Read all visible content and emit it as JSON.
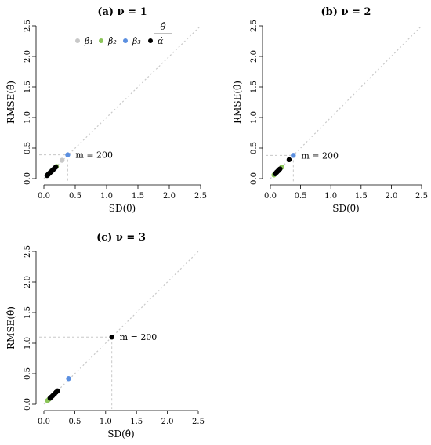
{
  "legend": {
    "title": "θ̂",
    "entries": [
      {
        "label": "β̂₁",
        "color": "#c8c8c8"
      },
      {
        "label": "β̂₂",
        "color": "#8cc55a"
      },
      {
        "label": "β̂₃",
        "color": "#5b8fe0"
      },
      {
        "label": "α̂",
        "color": "#000000"
      }
    ]
  },
  "chart_data": [
    {
      "type": "scatter",
      "title": "(a) ν = 1",
      "xlabel": "SD(θ̂)",
      "ylabel": "RMSE(θ̂)",
      "xlim": [
        0,
        2.5
      ],
      "ylim": [
        0,
        2.5
      ],
      "ticks": [
        "0.0",
        "0.5",
        "1.0",
        "1.5",
        "2.0",
        "2.5"
      ],
      "annotation": {
        "label": "m = 200",
        "x": 0.38,
        "y": 0.39
      },
      "series": [
        {
          "color": "#c8c8c8",
          "points": [
            [
              0.06,
              0.06
            ],
            [
              0.08,
              0.08
            ],
            [
              0.1,
              0.1
            ],
            [
              0.12,
              0.12
            ],
            [
              0.29,
              0.3
            ]
          ]
        },
        {
          "color": "#8cc55a",
          "points": [
            [
              0.06,
              0.06
            ],
            [
              0.09,
              0.09
            ],
            [
              0.13,
              0.13
            ],
            [
              0.2,
              0.2
            ]
          ]
        },
        {
          "color": "#5b8fe0",
          "points": [
            [
              0.07,
              0.07
            ],
            [
              0.11,
              0.11
            ],
            [
              0.15,
              0.15
            ],
            [
              0.38,
              0.39
            ]
          ]
        },
        {
          "color": "#000000",
          "points": [
            [
              0.05,
              0.05
            ],
            [
              0.06,
              0.06
            ],
            [
              0.07,
              0.07
            ],
            [
              0.08,
              0.08
            ],
            [
              0.09,
              0.09
            ],
            [
              0.1,
              0.1
            ],
            [
              0.11,
              0.11
            ],
            [
              0.13,
              0.13
            ],
            [
              0.15,
              0.15
            ],
            [
              0.17,
              0.17
            ],
            [
              0.19,
              0.19
            ]
          ]
        }
      ]
    },
    {
      "type": "scatter",
      "title": "(b) ν = 2",
      "xlabel": "SD(θ̂)",
      "ylabel": "RMSE(θ̂)",
      "xlim": [
        0,
        2.5
      ],
      "ylim": [
        0,
        2.5
      ],
      "ticks": [
        "0.0",
        "0.5",
        "1.0",
        "1.5",
        "2.0",
        "2.5"
      ],
      "annotation": {
        "label": "m = 200",
        "x": 0.38,
        "y": 0.38
      },
      "series": [
        {
          "color": "#c8c8c8",
          "points": [
            [
              0.07,
              0.07
            ],
            [
              0.1,
              0.1
            ],
            [
              0.13,
              0.13
            ]
          ]
        },
        {
          "color": "#8cc55a",
          "points": [
            [
              0.06,
              0.06
            ],
            [
              0.09,
              0.09
            ],
            [
              0.14,
              0.14
            ],
            [
              0.19,
              0.19
            ]
          ]
        },
        {
          "color": "#5b8fe0",
          "points": [
            [
              0.08,
              0.08
            ],
            [
              0.12,
              0.12
            ],
            [
              0.38,
              0.38
            ]
          ]
        },
        {
          "color": "#000000",
          "points": [
            [
              0.08,
              0.08
            ],
            [
              0.1,
              0.1
            ],
            [
              0.11,
              0.11
            ],
            [
              0.12,
              0.12
            ],
            [
              0.13,
              0.13
            ],
            [
              0.14,
              0.14
            ],
            [
              0.15,
              0.15
            ],
            [
              0.16,
              0.16
            ],
            [
              0.31,
              0.31
            ]
          ]
        }
      ]
    },
    {
      "type": "scatter",
      "title": "(c) ν = 3",
      "xlabel": "SD(θ̂)",
      "ylabel": "RMSE(θ̂)",
      "xlim": [
        0,
        2.5
      ],
      "ylim": [
        0,
        2.5
      ],
      "ticks": [
        "0.0",
        "0.5",
        "1.0",
        "1.5",
        "2.0",
        "2.5"
      ],
      "annotation": {
        "label": "m = 200",
        "x": 1.1,
        "y": 1.1
      },
      "series": [
        {
          "color": "#c8c8c8",
          "points": [
            [
              0.06,
              0.06
            ],
            [
              0.09,
              0.09
            ]
          ]
        },
        {
          "color": "#8cc55a",
          "points": [
            [
              0.06,
              0.06
            ],
            [
              0.08,
              0.08
            ]
          ]
        },
        {
          "color": "#5b8fe0",
          "points": [
            [
              0.4,
              0.42
            ]
          ]
        },
        {
          "color": "#000000",
          "points": [
            [
              0.1,
              0.1
            ],
            [
              0.12,
              0.12
            ],
            [
              0.14,
              0.14
            ],
            [
              0.16,
              0.16
            ],
            [
              0.18,
              0.18
            ],
            [
              0.2,
              0.2
            ],
            [
              0.22,
              0.22
            ],
            [
              1.1,
              1.1
            ]
          ]
        }
      ]
    }
  ]
}
